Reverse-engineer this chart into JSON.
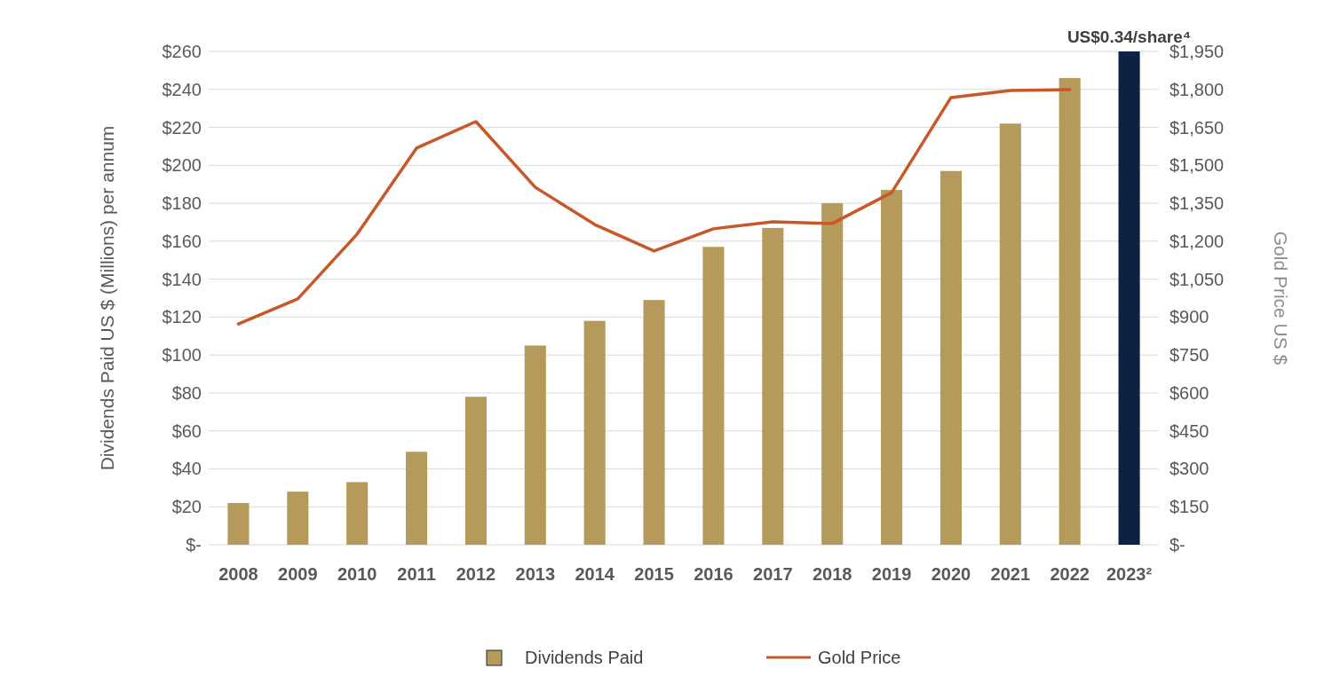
{
  "chart_data": {
    "type": "bar",
    "ylabel": "Dividends Paid US $ (Millions) per annum",
    "y2label": "Gold Price US $",
    "categories": [
      "2008",
      "2009",
      "2010",
      "2011",
      "2012",
      "2013",
      "2014",
      "2015",
      "2016",
      "2017",
      "2018",
      "2019",
      "2020",
      "2021",
      "2022",
      "2023²"
    ],
    "series": [
      {
        "name": "Dividends Paid",
        "color": "#b59a5b",
        "colors": [
          "#b59a5b",
          "#b59a5b",
          "#b59a5b",
          "#b59a5b",
          "#b59a5b",
          "#b59a5b",
          "#b59a5b",
          "#b59a5b",
          "#b59a5b",
          "#b59a5b",
          "#b59a5b",
          "#b59a5b",
          "#b59a5b",
          "#b59a5b",
          "#b59a5b",
          "#0d2142"
        ],
        "values": [
          22,
          28,
          33,
          49,
          78,
          105,
          118,
          129,
          157,
          167,
          180,
          187,
          197,
          222,
          246,
          260
        ]
      },
      {
        "name": "Gold Price",
        "type": "line",
        "axis": "y2",
        "color": "#c8582a",
        "values": [
          873,
          972,
          1228,
          1568,
          1673,
          1413,
          1266,
          1161,
          1249,
          1277,
          1270,
          1392,
          1768,
          1796,
          1799,
          null
        ]
      }
    ],
    "ylim": [
      0,
      260
    ],
    "yticks": [
      {
        "value": 0,
        "label": "$-"
      },
      {
        "value": 20,
        "label": "$20"
      },
      {
        "value": 40,
        "label": "$40"
      },
      {
        "value": 60,
        "label": "$60"
      },
      {
        "value": 80,
        "label": "$80"
      },
      {
        "value": 100,
        "label": "$100"
      },
      {
        "value": 120,
        "label": "$120"
      },
      {
        "value": 140,
        "label": "$140"
      },
      {
        "value": 160,
        "label": "$160"
      },
      {
        "value": 180,
        "label": "$180"
      },
      {
        "value": 200,
        "label": "$200"
      },
      {
        "value": 220,
        "label": "$220"
      },
      {
        "value": 240,
        "label": "$240"
      },
      {
        "value": 260,
        "label": "$260"
      }
    ],
    "y2lim": [
      0,
      1950
    ],
    "y2ticks": [
      {
        "value": 0,
        "label": "$-"
      },
      {
        "value": 150,
        "label": "$150"
      },
      {
        "value": 300,
        "label": "$300"
      },
      {
        "value": 450,
        "label": "$450"
      },
      {
        "value": 600,
        "label": "$600"
      },
      {
        "value": 750,
        "label": "$750"
      },
      {
        "value": 900,
        "label": "$900"
      },
      {
        "value": 1050,
        "label": "$1,050"
      },
      {
        "value": 1200,
        "label": "$1,200"
      },
      {
        "value": 1350,
        "label": "$1,350"
      },
      {
        "value": 1500,
        "label": "$1,500"
      },
      {
        "value": 1650,
        "label": "$1,650"
      },
      {
        "value": 1800,
        "label": "$1,800"
      },
      {
        "value": 1950,
        "label": "$1,950"
      }
    ],
    "grid": "y",
    "legend": "bottom",
    "annotations": [
      {
        "text": "US$0.34/share⁴",
        "x": "2023²",
        "y": 260
      }
    ]
  }
}
